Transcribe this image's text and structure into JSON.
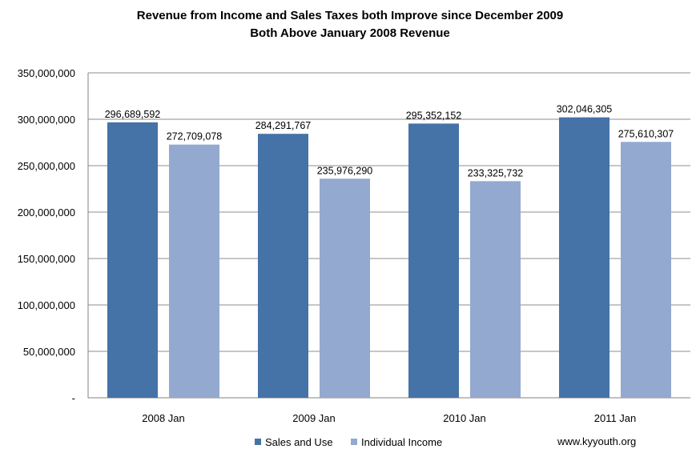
{
  "chart_data": {
    "type": "bar",
    "title": "Revenue from Income and Sales Taxes both Improve since December 2009",
    "subtitle": "Both Above January 2008 Revenue",
    "categories": [
      "2008 Jan",
      "2009 Jan",
      "2010 Jan",
      "2011 Jan"
    ],
    "series": [
      {
        "name": "Sales and Use",
        "color": "#4572a7",
        "values": [
          296689592,
          284291767,
          295352152,
          302046305
        ],
        "labels": [
          "296,689,592",
          "284,291,767",
          "295,352,152",
          "302,046,305"
        ]
      },
      {
        "name": "Individual Income",
        "color": "#93a9d0",
        "values": [
          272709078,
          235976290,
          233325732,
          275610307
        ],
        "labels": [
          "272,709,078",
          "235,976,290",
          "233,325,732",
          "275,610,307"
        ]
      }
    ],
    "ylim": [
      0,
      350000000
    ],
    "y_ticks": [
      0,
      50000000,
      100000000,
      150000000,
      200000000,
      250000000,
      300000000,
      350000000
    ],
    "y_tick_labels": [
      "-",
      "50,000,000",
      "100,000,000",
      "150,000,000",
      "200,000,000",
      "250,000,000",
      "300,000,000",
      "350,000,000"
    ],
    "grid": true,
    "legend_position": "bottom",
    "source_note": "www.kyyouth.org"
  }
}
